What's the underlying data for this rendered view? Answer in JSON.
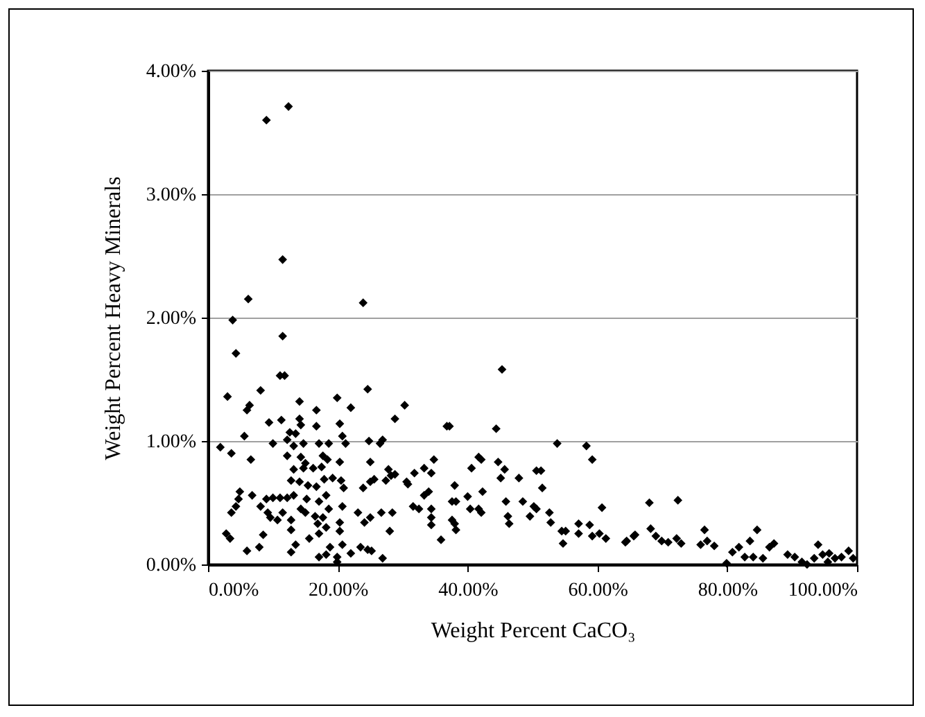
{
  "chart_data": {
    "type": "scatter",
    "xlabel": "Weight Percent CaCO₃",
    "ylabel": "Weight Percent Heavy Minerals",
    "xlim": [
      0,
      100
    ],
    "ylim": [
      0,
      4
    ],
    "xticks": [
      {
        "value": 0,
        "label": "0.00%"
      },
      {
        "value": 20,
        "label": "20.00%"
      },
      {
        "value": 40,
        "label": "40.00%"
      },
      {
        "value": 60,
        "label": "60.00%"
      },
      {
        "value": 80,
        "label": "80.00%"
      },
      {
        "value": 100,
        "label": "100.00%"
      }
    ],
    "yticks": [
      {
        "value": 0,
        "label": "0.00%"
      },
      {
        "value": 1,
        "label": "1.00%"
      },
      {
        "value": 2,
        "label": "2.00%"
      },
      {
        "value": 3,
        "label": "3.00%"
      },
      {
        "value": 4,
        "label": "4.00%"
      }
    ],
    "grid": "y",
    "marker": "diamond",
    "series": [
      {
        "color": "#000000",
        "x": [
          9.0,
          12.4,
          11.5,
          6.2,
          23.9,
          3.8,
          11.5,
          4.3,
          45.3,
          30.3,
          11.1,
          11.8,
          3.0,
          8.1,
          6.4,
          6.0,
          14.1,
          16.7,
          19.9,
          22.0,
          24.6,
          28.8,
          11.3,
          9.4,
          14.1,
          14.3,
          16.7,
          20.3,
          12.6,
          13.5,
          5.6,
          1.9,
          3.6,
          10.0,
          12.2,
          13.2,
          14.7,
          17.1,
          18.6,
          20.7,
          21.2,
          24.8,
          26.5,
          26.9,
          6.6,
          12.2,
          14.3,
          15.0,
          17.7,
          18.4,
          20.3,
          25.0,
          13.2,
          14.7,
          16.2,
          17.5,
          27.8,
          28.8,
          30.6,
          12.8,
          14.1,
          15.4,
          16.7,
          17.9,
          19.2,
          20.5,
          20.9,
          23.9,
          25.0,
          25.6,
          27.4,
          28.2,
          4.9,
          6.8,
          4.7,
          9.0,
          10.0,
          11.1,
          12.2,
          13.2,
          15.2,
          17.1,
          18.2,
          18.6,
          20.7,
          4.3,
          3.6,
          8.1,
          9.2,
          9.6,
          10.7,
          11.5,
          12.8,
          14.3,
          15.0,
          16.5,
          16.9,
          17.7,
          18.2,
          20.3,
          20.3,
          23.1,
          24.1,
          25.0,
          26.7,
          28.4,
          28.0,
          2.8,
          3.4,
          8.5,
          12.8,
          13.5,
          12.8,
          15.6,
          17.1,
          18.8,
          17.1,
          18.2,
          20.7,
          19.9,
          19.9,
          6.0,
          7.9,
          22.0,
          23.5,
          24.6,
          25.2,
          26.9,
          36.8,
          37.2,
          44.4,
          53.8,
          58.3,
          59.2,
          34.8,
          30.8,
          31.8,
          33.3,
          34.4,
          41.7,
          42.1,
          40.6,
          44.7,
          45.7,
          45.1,
          47.9,
          50.6,
          51.3,
          51.5,
          38.0,
          33.3,
          34.0,
          42.3,
          40.0,
          37.6,
          38.2,
          31.6,
          32.5,
          34.4,
          40.4,
          41.7,
          42.1,
          45.9,
          48.5,
          50.2,
          50.6,
          49.6,
          52.6,
          52.8,
          46.2,
          46.4,
          34.4,
          34.4,
          37.6,
          38.0,
          38.2,
          35.9,
          60.7,
          54.5,
          55.1,
          57.1,
          57.1,
          58.8,
          59.2,
          60.3,
          61.3,
          54.7,
          64.3,
          65.6,
          68.0,
          72.4,
          68.2,
          69.0,
          69.9,
          70.9,
          72.2,
          72.9,
          76.5,
          75.9,
          76.9,
          78.0,
          64.5,
          65.8,
          79.9,
          80.8,
          81.8,
          82.7,
          83.5,
          84.6,
          84.0,
          85.5,
          86.5,
          87.2,
          89.3,
          90.4,
          91.5,
          92.3,
          93.4,
          94.0,
          94.7,
          95.7,
          96.6,
          97.6,
          98.7,
          99.4,
          95.5
        ],
        "values": [
          3.6,
          3.71,
          2.47,
          2.15,
          2.12,
          1.98,
          1.85,
          1.71,
          1.58,
          1.29,
          1.53,
          1.53,
          1.36,
          1.41,
          1.29,
          1.25,
          1.32,
          1.25,
          1.35,
          1.27,
          1.42,
          1.18,
          1.17,
          1.15,
          1.18,
          1.13,
          1.12,
          1.14,
          1.07,
          1.06,
          1.04,
          0.95,
          0.9,
          0.98,
          1.01,
          0.96,
          0.98,
          0.98,
          0.98,
          1.04,
          0.98,
          1.0,
          0.98,
          1.01,
          0.85,
          0.88,
          0.87,
          0.82,
          0.88,
          0.85,
          0.83,
          0.83,
          0.77,
          0.78,
          0.78,
          0.79,
          0.77,
          0.73,
          0.67,
          0.68,
          0.67,
          0.64,
          0.63,
          0.69,
          0.7,
          0.68,
          0.62,
          0.62,
          0.67,
          0.69,
          0.68,
          0.72,
          0.59,
          0.56,
          0.53,
          0.53,
          0.54,
          0.54,
          0.54,
          0.56,
          0.53,
          0.51,
          0.56,
          0.45,
          0.47,
          0.47,
          0.42,
          0.47,
          0.42,
          0.38,
          0.36,
          0.42,
          0.36,
          0.45,
          0.42,
          0.39,
          0.33,
          0.38,
          0.3,
          0.34,
          0.27,
          0.42,
          0.34,
          0.38,
          0.42,
          0.42,
          0.27,
          0.25,
          0.21,
          0.24,
          0.28,
          0.16,
          0.1,
          0.21,
          0.25,
          0.14,
          0.06,
          0.08,
          0.16,
          0.06,
          0.02,
          0.11,
          0.14,
          0.09,
          0.14,
          0.12,
          0.11,
          0.05,
          1.12,
          1.12,
          1.1,
          0.98,
          0.96,
          0.85,
          0.85,
          0.65,
          0.74,
          0.78,
          0.74,
          0.87,
          0.85,
          0.78,
          0.83,
          0.77,
          0.7,
          0.7,
          0.76,
          0.76,
          0.62,
          0.64,
          0.56,
          0.59,
          0.59,
          0.55,
          0.51,
          0.51,
          0.47,
          0.45,
          0.45,
          0.45,
          0.45,
          0.42,
          0.51,
          0.51,
          0.47,
          0.45,
          0.39,
          0.42,
          0.34,
          0.39,
          0.33,
          0.38,
          0.32,
          0.36,
          0.33,
          0.28,
          0.2,
          0.46,
          0.27,
          0.27,
          0.33,
          0.25,
          0.32,
          0.23,
          0.25,
          0.21,
          0.17,
          0.18,
          0.23,
          0.5,
          0.52,
          0.29,
          0.23,
          0.19,
          0.18,
          0.21,
          0.17,
          0.28,
          0.16,
          0.19,
          0.15,
          0.19,
          0.24,
          0.01,
          0.1,
          0.14,
          0.06,
          0.19,
          0.28,
          0.06,
          0.05,
          0.14,
          0.17,
          0.08,
          0.06,
          0.02,
          0.0,
          0.05,
          0.16,
          0.08,
          0.09,
          0.05,
          0.06,
          0.11,
          0.05,
          0.02
        ]
      }
    ]
  }
}
